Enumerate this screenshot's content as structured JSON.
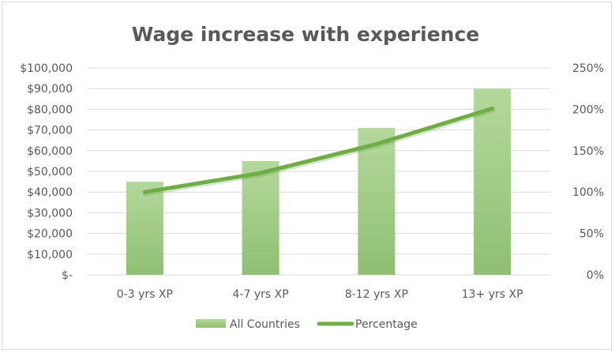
{
  "chart_data": {
    "type": "bar",
    "title": "Wage increase with experience",
    "categories": [
      "0-3 yrs XP",
      "4-7 yrs XP",
      "8-12 yrs XP",
      "13+ yrs XP"
    ],
    "series": [
      {
        "name": "All Countries",
        "type": "bar",
        "axis": "left",
        "values": [
          45000,
          55000,
          71000,
          90000
        ],
        "color": "#a9d18e"
      },
      {
        "name": "Percentage",
        "type": "line",
        "axis": "right",
        "values": [
          100,
          123,
          158,
          201
        ],
        "color": "#70ad47"
      }
    ],
    "y_left": {
      "min": 0,
      "max": 100000,
      "ticks": [
        0,
        10000,
        20000,
        30000,
        40000,
        50000,
        60000,
        70000,
        80000,
        90000,
        100000
      ],
      "tick_labels": [
        "$-",
        "$10,000",
        "$20,000",
        "$30,000",
        "$40,000",
        "$50,000",
        "$60,000",
        "$70,000",
        "$80,000",
        "$90,000",
        "$100,000"
      ]
    },
    "y_right": {
      "min": 0,
      "max": 250,
      "ticks": [
        0,
        50,
        100,
        150,
        200,
        250
      ],
      "tick_labels": [
        "0%",
        "50%",
        "100%",
        "150%",
        "200%",
        "250%"
      ]
    },
    "grid": true,
    "legend_position": "bottom"
  }
}
